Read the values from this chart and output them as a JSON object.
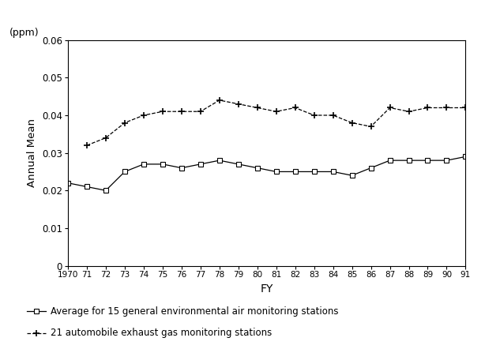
{
  "years": [
    1970,
    1971,
    1972,
    1973,
    1974,
    1975,
    1976,
    1977,
    1978,
    1979,
    1980,
    1981,
    1982,
    1983,
    1984,
    1985,
    1986,
    1987,
    1988,
    1989,
    1990,
    1991
  ],
  "general_stations": [
    0.022,
    0.021,
    0.02,
    0.025,
    0.027,
    0.027,
    0.026,
    0.027,
    0.028,
    0.027,
    0.026,
    0.025,
    0.025,
    0.025,
    0.025,
    0.024,
    0.026,
    0.028,
    0.028,
    0.028,
    0.028,
    0.029
  ],
  "auto_stations": [
    null,
    0.032,
    0.034,
    0.038,
    0.04,
    0.041,
    0.041,
    0.041,
    0.044,
    0.043,
    0.042,
    0.041,
    0.042,
    0.04,
    0.04,
    0.038,
    0.037,
    0.042,
    0.041,
    0.042,
    0.042,
    0.042
  ],
  "ylabel": "Annual Mean",
  "xlabel": "FY",
  "ppm_label": "(ppm)",
  "ylim": [
    0,
    0.06
  ],
  "yticks": [
    0,
    0.01,
    0.02,
    0.03,
    0.04,
    0.05,
    0.06
  ],
  "ytick_labels": [
    "0",
    "0.01",
    "0.02",
    "0.03",
    "0.04",
    "0.05",
    "0.06"
  ],
  "legend_general": "Average for 15 general environmental air monitoring stations",
  "legend_auto": "21 automobile exhaust gas monitoring stations",
  "line_color": "#000000",
  "bg_color": "#ffffff"
}
